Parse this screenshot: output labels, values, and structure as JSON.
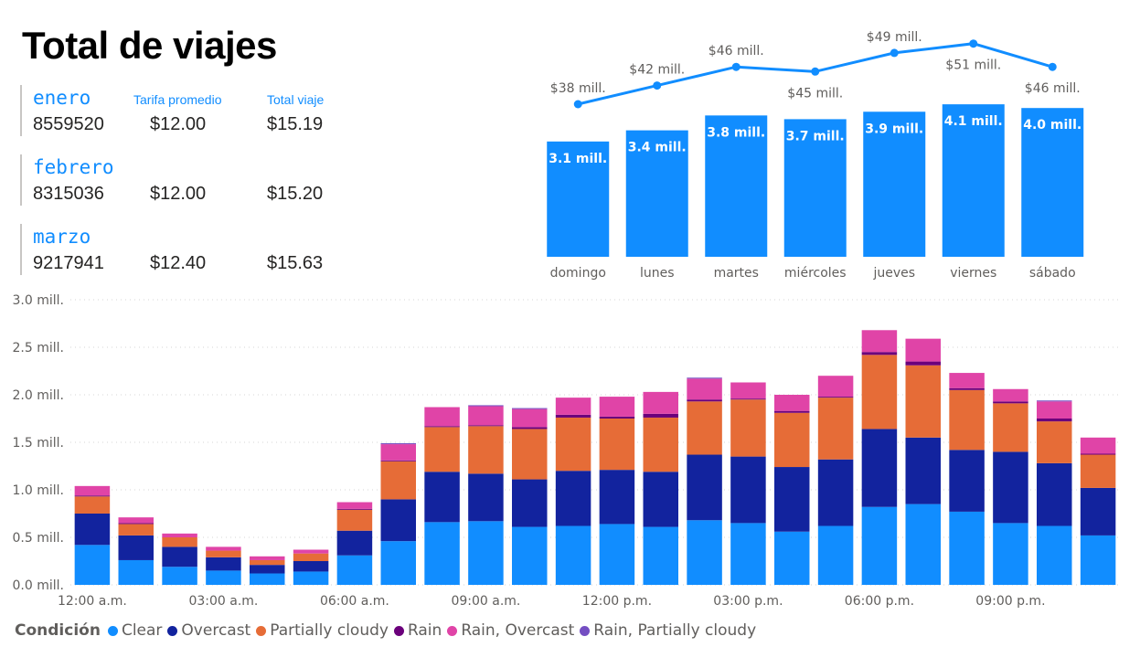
{
  "page": {
    "title": "Total de viajes"
  },
  "cards": [
    {
      "month": "enero",
      "trips": "8559520",
      "avg_fare": "$12.00",
      "total_trip": "$15.19",
      "avg_fare_label": "Tarifa promedio",
      "total_trip_label": "Total viaje"
    },
    {
      "month": "febrero",
      "trips": "8315036",
      "avg_fare": "$12.00",
      "total_trip": "$15.20"
    },
    {
      "month": "marzo",
      "trips": "9217941",
      "avg_fare": "$12.40",
      "total_trip": "$15.63"
    }
  ],
  "chart_data": [
    {
      "type": "bar",
      "categories": [
        "domingo",
        "lunes",
        "martes",
        "miércoles",
        "jueves",
        "viernes",
        "sábado"
      ],
      "series": [
        {
          "values": [
            3.1,
            3.4,
            3.8,
            3.7,
            3.9,
            4.1,
            4.0
          ],
          "labels": [
            "3.1 mill.",
            "3.4 mill.",
            "3.8 mill.",
            "3.7 mill.",
            "3.9 mill.",
            "4.1 mill.",
            "4.0 mill."
          ],
          "color": "#118dff"
        },
        {
          "type": "line",
          "values": [
            38,
            42,
            46,
            45,
            49,
            51,
            46
          ],
          "labels": [
            "$38 mill.",
            "$42 mill.",
            "$46 mill.",
            "$45 mill.",
            "$49 mill.",
            "$51 mill.",
            "$46 mill."
          ],
          "color": "#118dff"
        }
      ],
      "grid": false,
      "legend": "none"
    },
    {
      "type": "bar",
      "stacked": true,
      "categories": [
        "12:00 a.m.",
        "1:00 a.m.",
        "2:00 a.m.",
        "03:00 a.m.",
        "4:00 a.m.",
        "5:00 a.m.",
        "06:00 a.m.",
        "7:00 a.m.",
        "8:00 a.m.",
        "09:00 a.m.",
        "10:00 a.m.",
        "11:00 a.m.",
        "12:00 p.m.",
        "1:00 p.m.",
        "2:00 p.m.",
        "03:00 p.m.",
        "4:00 p.m.",
        "5:00 p.m.",
        "06:00 p.m.",
        "7:00 p.m.",
        "8:00 p.m.",
        "09:00 p.m.",
        "10:00 p.m.",
        "11:00 p.m."
      ],
      "x_tick_labels": [
        "12:00 a.m.",
        "03:00 a.m.",
        "06:00 a.m.",
        "09:00 a.m.",
        "12:00 p.m.",
        "03:00 p.m.",
        "06:00 p.m.",
        "09:00 p.m."
      ],
      "y_tick_labels": [
        "0.0 mill.",
        "0.5 mill.",
        "1.0 mill.",
        "1.5 mill.",
        "2.0 mill.",
        "2.5 mill.",
        "3.0 mill."
      ],
      "ylim": [
        0,
        3.0
      ],
      "series": [
        {
          "name": "Clear",
          "color": "#118dff",
          "values": [
            0.42,
            0.26,
            0.19,
            0.15,
            0.12,
            0.14,
            0.31,
            0.46,
            0.66,
            0.67,
            0.61,
            0.62,
            0.64,
            0.61,
            0.68,
            0.65,
            0.56,
            0.62,
            0.82,
            0.85,
            0.77,
            0.65,
            0.62,
            0.52
          ]
        },
        {
          "name": "Overcast",
          "color": "#12239e",
          "values": [
            0.33,
            0.26,
            0.21,
            0.14,
            0.09,
            0.11,
            0.26,
            0.44,
            0.53,
            0.5,
            0.5,
            0.58,
            0.57,
            0.58,
            0.69,
            0.7,
            0.68,
            0.7,
            0.82,
            0.7,
            0.65,
            0.75,
            0.66,
            0.5
          ]
        },
        {
          "name": "Partially cloudy",
          "color": "#e66c37",
          "values": [
            0.18,
            0.12,
            0.1,
            0.07,
            0.05,
            0.08,
            0.22,
            0.4,
            0.47,
            0.5,
            0.53,
            0.56,
            0.54,
            0.57,
            0.56,
            0.6,
            0.57,
            0.65,
            0.78,
            0.76,
            0.63,
            0.51,
            0.44,
            0.35
          ]
        },
        {
          "name": "Rain",
          "color": "#6b007b",
          "values": [
            0.01,
            0.01,
            0.0,
            0.0,
            0.0,
            0.0,
            0.01,
            0.01,
            0.01,
            0.01,
            0.02,
            0.03,
            0.02,
            0.04,
            0.02,
            0.01,
            0.02,
            0.01,
            0.03,
            0.04,
            0.02,
            0.02,
            0.03,
            0.01
          ]
        },
        {
          "name": "Rain, Overcast",
          "color": "#e044a7",
          "values": [
            0.1,
            0.06,
            0.04,
            0.04,
            0.04,
            0.04,
            0.07,
            0.17,
            0.2,
            0.2,
            0.19,
            0.18,
            0.21,
            0.23,
            0.22,
            0.17,
            0.17,
            0.22,
            0.23,
            0.24,
            0.16,
            0.13,
            0.18,
            0.17
          ]
        },
        {
          "name": "Rain, Partially cloudy",
          "color": "#744ec2",
          "values": [
            0.0,
            0.0,
            0.0,
            0.0,
            0.0,
            0.0,
            0.0,
            0.01,
            0.0,
            0.01,
            0.01,
            0.0,
            0.0,
            0.0,
            0.01,
            0.0,
            0.0,
            0.0,
            0.0,
            0.0,
            0.0,
            0.0,
            0.01,
            0.0
          ]
        }
      ],
      "grid": true,
      "legend": "bottom-left",
      "legend_title": "Condición"
    }
  ]
}
